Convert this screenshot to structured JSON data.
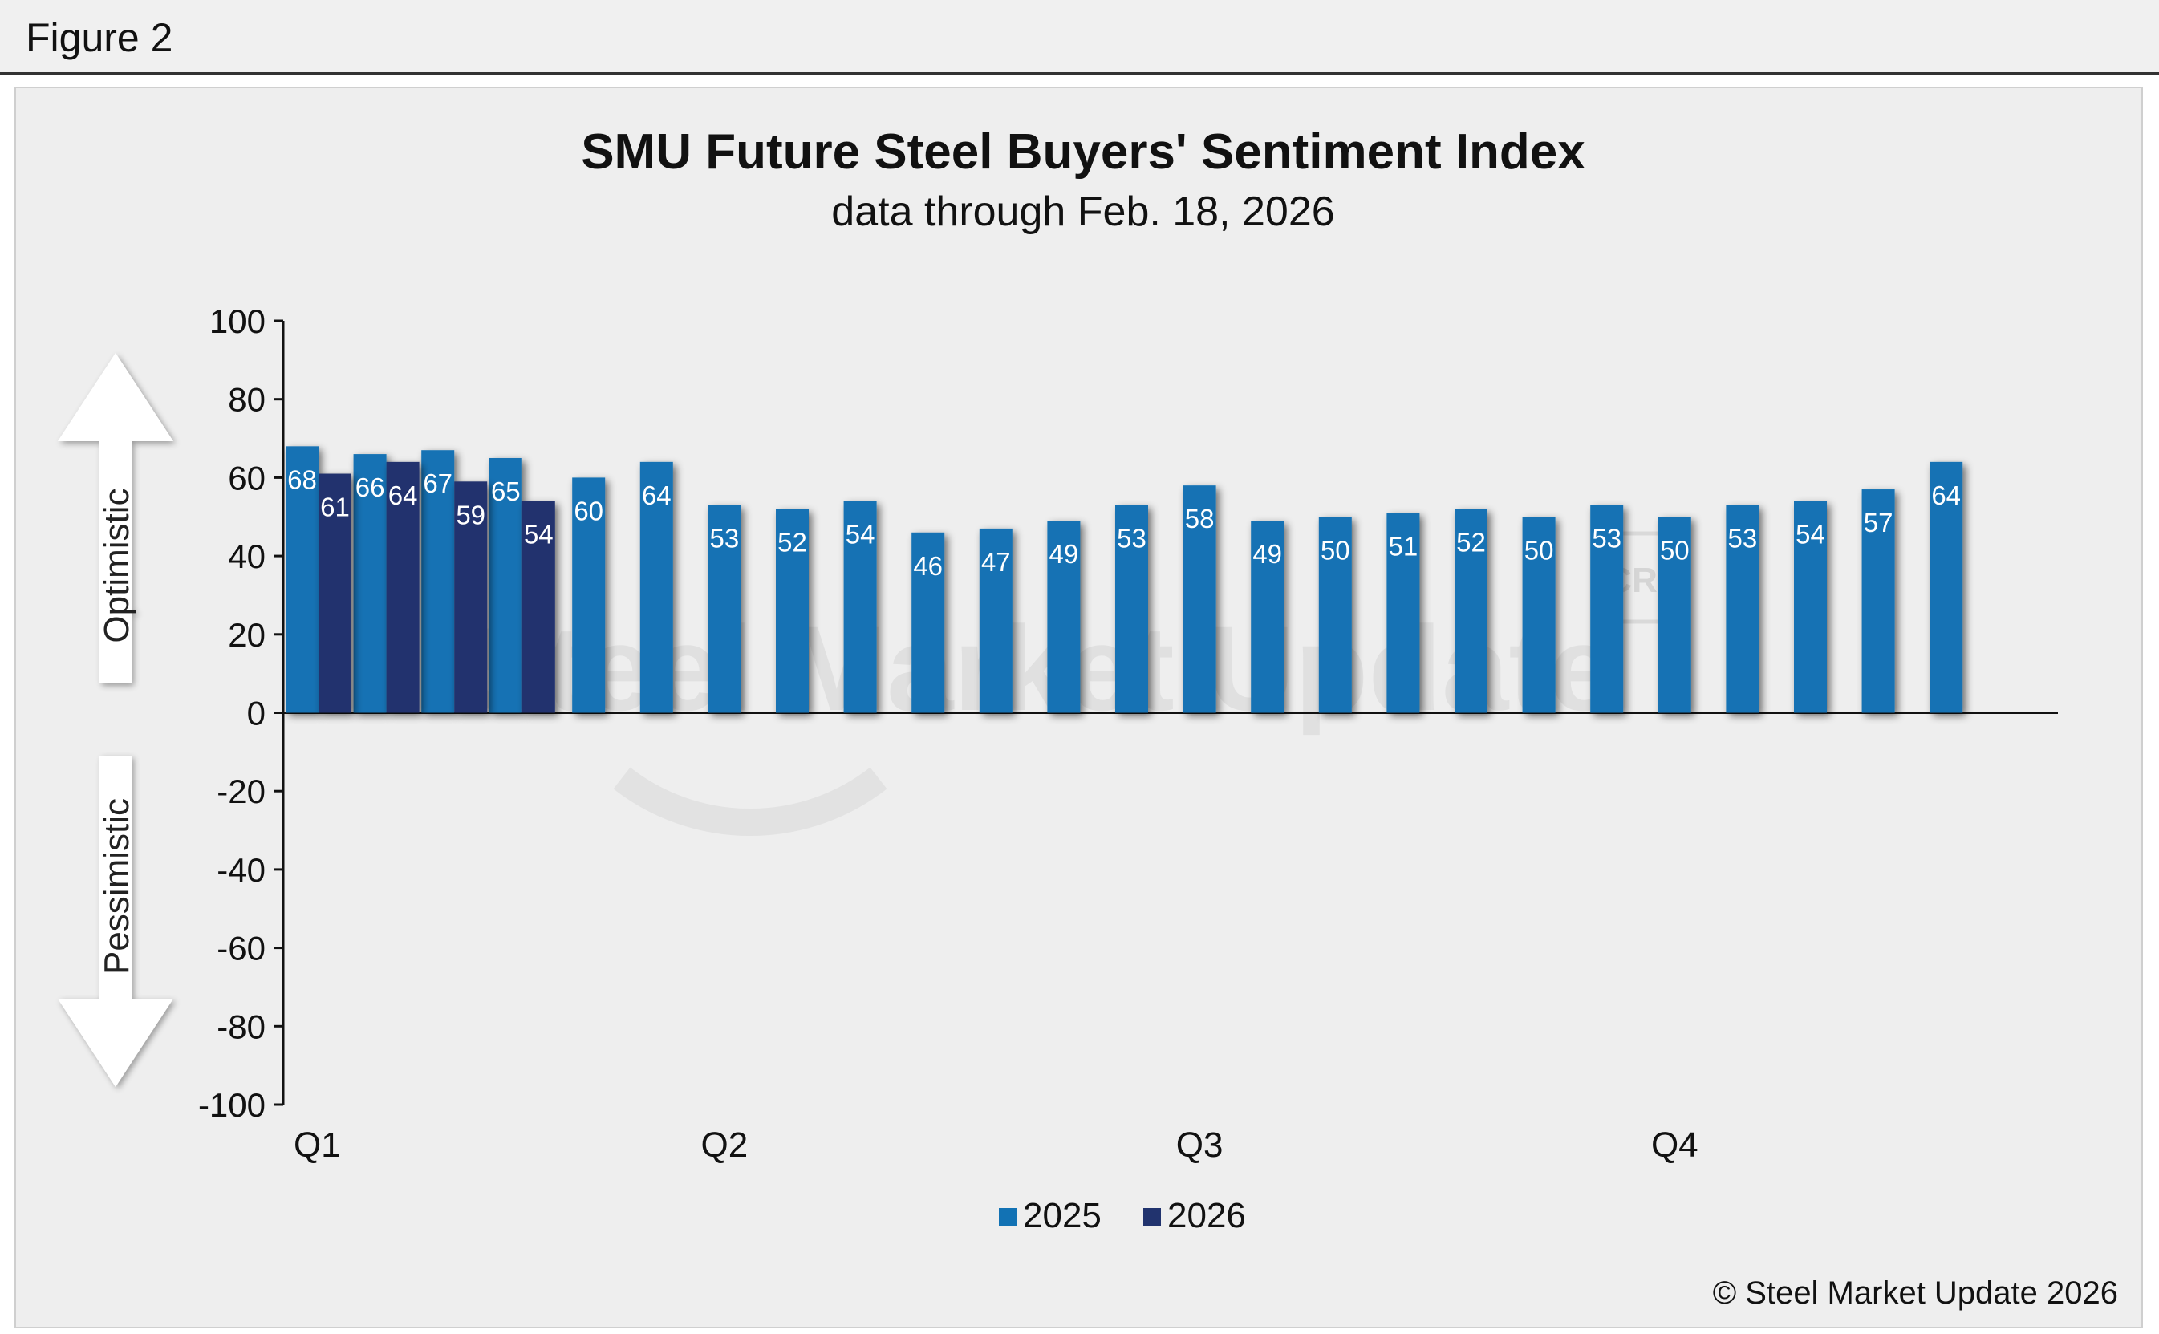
{
  "figure_label": "Figure 2",
  "copyright": "© Steel Market Update 2026",
  "watermark": "Steel Market Update",
  "watermark_badge": "CRU",
  "arrows": {
    "up": "Optimistic",
    "down": "Pessimistic"
  },
  "colors": {
    "series_2025": "#1272b4",
    "series_2026": "#21336e",
    "background": "#eeeeee"
  },
  "chart_data": {
    "type": "bar",
    "title": "SMU Future Steel Buyers' Sentiment Index",
    "subtitle": "data through Feb. 18, 2026",
    "xlabel": "",
    "ylabel": "",
    "ylim": [
      -100,
      100
    ],
    "yticks": [
      100,
      80,
      60,
      40,
      20,
      0,
      -20,
      -40,
      -60,
      -80,
      -100
    ],
    "xtick_labels": [
      {
        "label": "Q1",
        "at_period": 0
      },
      {
        "label": "Q2",
        "at_period": 6
      },
      {
        "label": "Q3",
        "at_period": 13
      },
      {
        "label": "Q4",
        "at_period": 20
      }
    ],
    "grid": false,
    "legend": {
      "position": "bottom"
    },
    "series": [
      {
        "name": "2025",
        "color": "#1272b4",
        "values": [
          68,
          66,
          67,
          65,
          60,
          64,
          53,
          52,
          54,
          46,
          47,
          49,
          53,
          58,
          49,
          50,
          51,
          52,
          50,
          53,
          50,
          53,
          54,
          57,
          64
        ]
      },
      {
        "name": "2026",
        "color": "#21336e",
        "values": [
          61,
          64,
          59,
          54
        ]
      }
    ]
  }
}
